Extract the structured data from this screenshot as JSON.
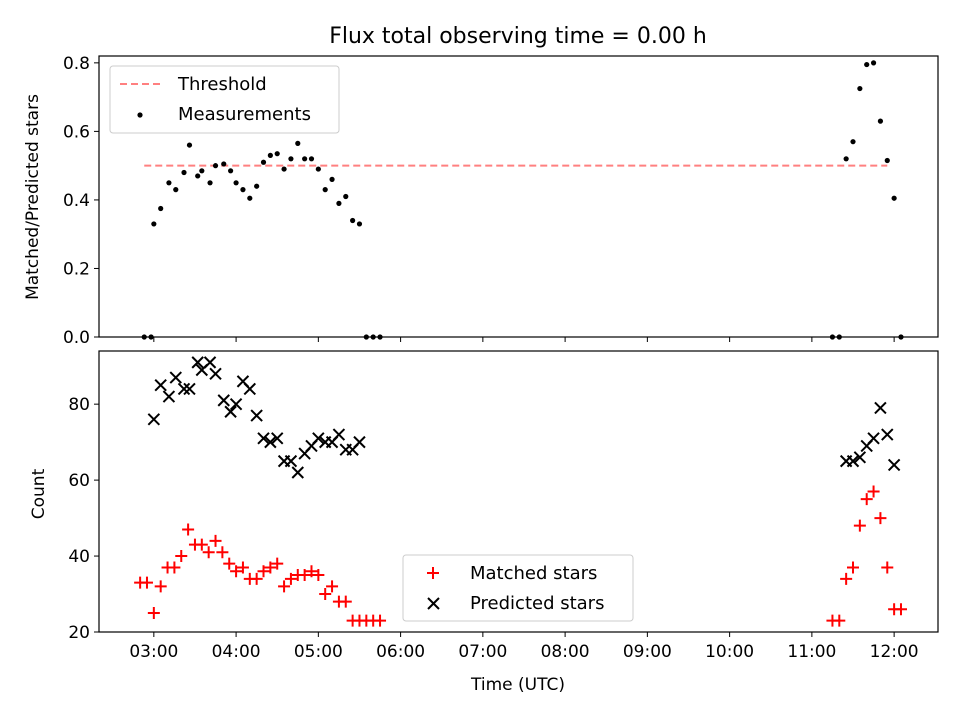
{
  "title": "Flux total observing time = 0.00 h",
  "xlabel": "Time (UTC)",
  "x_ticks": [
    "03:00",
    "04:00",
    "05:00",
    "06:00",
    "07:00",
    "08:00",
    "09:00",
    "10:00",
    "11:00",
    "12:00"
  ],
  "colors": {
    "threshold": "#ff8080",
    "measurements": "#000000",
    "matched": "#ff0000",
    "predicted": "#000000"
  },
  "chart_data": [
    {
      "type": "scatter",
      "ylabel": "Matched/Predicted stars",
      "xlim": [
        "02:20",
        "12:32"
      ],
      "ylim": [
        0,
        0.82
      ],
      "y_ticks": [
        "0.0",
        "0.2",
        "0.4",
        "0.6",
        "0.8"
      ],
      "legend": {
        "position": "top-left",
        "entries": [
          "Threshold",
          "Measurements"
        ]
      },
      "threshold": {
        "name": "Threshold",
        "value": 0.5,
        "x_start": "02:53",
        "x_end": "11:55",
        "style": "dashed"
      },
      "series": [
        {
          "name": "Measurements",
          "marker": "dot",
          "points": [
            [
              "02:53",
              0.0
            ],
            [
              "02:58",
              0.0
            ],
            [
              "03:00",
              0.33
            ],
            [
              "03:05",
              0.375
            ],
            [
              "03:11",
              0.45
            ],
            [
              "03:16",
              0.43
            ],
            [
              "03:22",
              0.48
            ],
            [
              "03:26",
              0.56
            ],
            [
              "03:32",
              0.47
            ],
            [
              "03:35",
              0.485
            ],
            [
              "03:41",
              0.45
            ],
            [
              "03:45",
              0.5
            ],
            [
              "03:51",
              0.505
            ],
            [
              "03:56",
              0.485
            ],
            [
              "04:00",
              0.45
            ],
            [
              "04:05",
              0.43
            ],
            [
              "04:10",
              0.405
            ],
            [
              "04:15",
              0.44
            ],
            [
              "04:20",
              0.51
            ],
            [
              "04:25",
              0.53
            ],
            [
              "04:30",
              0.535
            ],
            [
              "04:35",
              0.49
            ],
            [
              "04:40",
              0.52
            ],
            [
              "04:45",
              0.565
            ],
            [
              "04:50",
              0.52
            ],
            [
              "04:55",
              0.52
            ],
            [
              "05:00",
              0.49
            ],
            [
              "05:05",
              0.43
            ],
            [
              "05:10",
              0.46
            ],
            [
              "05:15",
              0.39
            ],
            [
              "05:20",
              0.41
            ],
            [
              "05:25",
              0.34
            ],
            [
              "05:30",
              0.33
            ],
            [
              "05:35",
              0.0
            ],
            [
              "05:40",
              0.0
            ],
            [
              "05:45",
              0.0
            ],
            [
              "11:15",
              0.0
            ],
            [
              "11:20",
              0.0
            ],
            [
              "11:25",
              0.52
            ],
            [
              "11:30",
              0.57
            ],
            [
              "11:35",
              0.725
            ],
            [
              "11:40",
              0.795
            ],
            [
              "11:45",
              0.8
            ],
            [
              "11:50",
              0.63
            ],
            [
              "11:55",
              0.515
            ],
            [
              "12:00",
              0.405
            ],
            [
              "12:05",
              0.0
            ]
          ]
        }
      ]
    },
    {
      "type": "scatter",
      "ylabel": "Count",
      "xlim": [
        "02:20",
        "12:32"
      ],
      "ylim": [
        20,
        94
      ],
      "y_ticks": [
        "20",
        "40",
        "60",
        "80"
      ],
      "legend": {
        "position": "lower-center",
        "entries": [
          "Matched stars",
          "Predicted stars"
        ]
      },
      "series": [
        {
          "name": "Matched stars",
          "marker": "plus",
          "points": [
            [
              "02:50",
              33
            ],
            [
              "02:55",
              33
            ],
            [
              "03:00",
              25
            ],
            [
              "03:05",
              32
            ],
            [
              "03:10",
              37
            ],
            [
              "03:15",
              37
            ],
            [
              "03:20",
              40
            ],
            [
              "03:25",
              47
            ],
            [
              "03:30",
              43
            ],
            [
              "03:35",
              43
            ],
            [
              "03:40",
              41
            ],
            [
              "03:45",
              44
            ],
            [
              "03:50",
              41
            ],
            [
              "03:55",
              38
            ],
            [
              "04:00",
              36
            ],
            [
              "04:05",
              37
            ],
            [
              "04:10",
              34
            ],
            [
              "04:15",
              34
            ],
            [
              "04:20",
              36
            ],
            [
              "04:25",
              37
            ],
            [
              "04:30",
              38
            ],
            [
              "04:35",
              32
            ],
            [
              "04:40",
              34
            ],
            [
              "04:45",
              35
            ],
            [
              "04:50",
              35
            ],
            [
              "04:55",
              36
            ],
            [
              "05:00",
              35
            ],
            [
              "05:05",
              30
            ],
            [
              "05:10",
              32
            ],
            [
              "05:15",
              28
            ],
            [
              "05:20",
              28
            ],
            [
              "05:25",
              23
            ],
            [
              "05:30",
              23
            ],
            [
              "05:35",
              23
            ],
            [
              "05:40",
              23
            ],
            [
              "05:45",
              23
            ],
            [
              "11:15",
              23
            ],
            [
              "11:20",
              23
            ],
            [
              "11:25",
              34
            ],
            [
              "11:30",
              37
            ],
            [
              "11:35",
              48
            ],
            [
              "11:40",
              55
            ],
            [
              "11:45",
              57
            ],
            [
              "11:50",
              50
            ],
            [
              "11:55",
              37
            ],
            [
              "12:00",
              26
            ],
            [
              "12:05",
              26
            ]
          ]
        },
        {
          "name": "Predicted stars",
          "marker": "x",
          "points": [
            [
              "03:00",
              76
            ],
            [
              "03:05",
              85
            ],
            [
              "03:11",
              82
            ],
            [
              "03:16",
              87
            ],
            [
              "03:22",
              84
            ],
            [
              "03:26",
              84
            ],
            [
              "03:32",
              91
            ],
            [
              "03:35",
              89
            ],
            [
              "03:41",
              91
            ],
            [
              "03:45",
              88
            ],
            [
              "03:51",
              81
            ],
            [
              "03:56",
              78
            ],
            [
              "04:00",
              80
            ],
            [
              "04:05",
              86
            ],
            [
              "04:10",
              84
            ],
            [
              "04:15",
              77
            ],
            [
              "04:20",
              71
            ],
            [
              "04:25",
              70
            ],
            [
              "04:30",
              71
            ],
            [
              "04:35",
              65
            ],
            [
              "04:40",
              65
            ],
            [
              "04:45",
              62
            ],
            [
              "04:50",
              67
            ],
            [
              "04:55",
              69
            ],
            [
              "05:00",
              71
            ],
            [
              "05:05",
              70
            ],
            [
              "05:10",
              70
            ],
            [
              "05:15",
              72
            ],
            [
              "05:20",
              68
            ],
            [
              "05:25",
              68
            ],
            [
              "05:30",
              70
            ],
            [
              "11:25",
              65
            ],
            [
              "11:30",
              65
            ],
            [
              "11:35",
              66
            ],
            [
              "11:40",
              69
            ],
            [
              "11:45",
              71
            ],
            [
              "11:50",
              79
            ],
            [
              "11:55",
              72
            ],
            [
              "12:00",
              64
            ]
          ]
        }
      ]
    }
  ]
}
